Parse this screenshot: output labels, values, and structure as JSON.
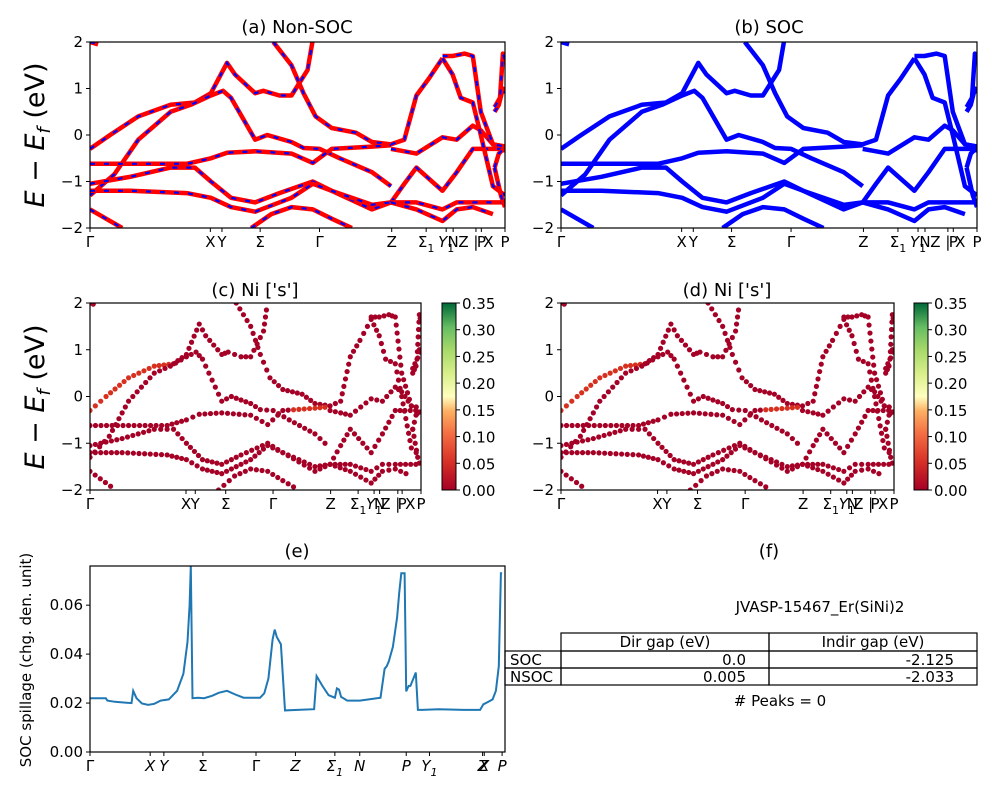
{
  "figure": {
    "material_title": "JVASP-15467_Er(SiNi)2",
    "peaks_text": "# Peaks = 0"
  },
  "chart_data": [
    {
      "id": "a",
      "type": "line",
      "title": "(a) Non-SOC",
      "ylabel": "E − E_f (eV)",
      "ylabel_main": "E − E",
      "ylabel_sub": "f",
      "ylabel_unit": " (eV)",
      "ylim": [
        -2,
        2
      ],
      "yticks": [
        -2,
        -1,
        0,
        1,
        2
      ],
      "ytick_labels": [
        "−2",
        "−1",
        "0",
        "1",
        "2"
      ],
      "xticks": [
        {
          "k": 0.0,
          "label": "Γ"
        },
        {
          "k": 0.29,
          "label": "X"
        },
        {
          "k": 0.318,
          "label": "Y"
        },
        {
          "k": 0.41,
          "label": "Σ"
        },
        {
          "k": 0.553,
          "label": "Γ"
        },
        {
          "k": 0.747,
          "label": "Z"
        },
        {
          "k": 0.81,
          "label": "Σ1"
        },
        {
          "k": 0.875,
          "label": "N"
        },
        {
          "k": 0.95,
          "label": "P"
        },
        {
          "k": 0.88,
          "label": "Y1"
        },
        {
          "k": 0.93,
          "label": "Z | X"
        },
        {
          "k": 1.0,
          "label": "P"
        }
      ],
      "series": [
        {
          "name": "NSOC",
          "color": "#ff0000"
        },
        {
          "name": "SOC",
          "color": "#0000ff",
          "style": "dashed-overlay"
        }
      ],
      "grid": false
    },
    {
      "id": "b",
      "type": "line",
      "title": "(b) SOC",
      "ylim": [
        -2,
        2
      ],
      "yticks": [
        -2,
        -1,
        0,
        1,
        2
      ],
      "ytick_labels": [
        "−2",
        "−1",
        "0",
        "1",
        "2"
      ],
      "series": [
        {
          "name": "SOC",
          "color": "#0000ff"
        }
      ],
      "grid": false
    },
    {
      "id": "c",
      "type": "scatter",
      "title": "(c)  Ni ['s']",
      "ylabel": "E − E_f (eV)",
      "ylim": [
        -2,
        2
      ],
      "colorbar": {
        "cmap": "RdYlGn",
        "range": [
          0.0,
          0.35
        ],
        "ticks": [
          "0.00",
          "0.05",
          "0.10",
          "0.15",
          "0.20",
          "0.25",
          "0.30",
          "0.35"
        ]
      },
      "grid": false
    },
    {
      "id": "d",
      "type": "scatter",
      "title": "(d) Ni ['s']",
      "ylim": [
        -2,
        2
      ],
      "colorbar": {
        "cmap": "RdYlGn",
        "range": [
          0.0,
          0.35
        ],
        "ticks": [
          "0.00",
          "0.05",
          "0.10",
          "0.15",
          "0.20",
          "0.25",
          "0.30",
          "0.35"
        ]
      },
      "grid": false
    },
    {
      "id": "e",
      "type": "line",
      "title": "(e)",
      "ylabel": "SOC spillage (chg. den. unit)",
      "ylim": [
        0.0,
        0.076
      ],
      "yticks": [
        0.0,
        0.02,
        0.04,
        0.06
      ],
      "ytick_labels": [
        "0.00",
        "0.02",
        "0.04",
        "0.06"
      ],
      "xtick_labels": [
        "Γ",
        "X",
        "Y",
        "Σ",
        "Γ",
        "Z",
        "Σ1",
        "N",
        "P",
        "Y1",
        "Z",
        "X",
        "P"
      ],
      "xtick_k": [
        0.0,
        0.145,
        0.178,
        0.272,
        0.4,
        0.495,
        0.59,
        0.65,
        0.762,
        0.818,
        0.946,
        0.95,
        0.993
      ],
      "color": "#1f77b4",
      "x": [
        0.0,
        0.038,
        0.042,
        0.06,
        0.1,
        0.104,
        0.112,
        0.125,
        0.14,
        0.155,
        0.17,
        0.19,
        0.21,
        0.225,
        0.235,
        0.24,
        0.243,
        0.247,
        0.26,
        0.275,
        0.295,
        0.31,
        0.33,
        0.35,
        0.37,
        0.39,
        0.41,
        0.42,
        0.43,
        0.435,
        0.44,
        0.445,
        0.45,
        0.46,
        0.47,
        0.5,
        0.54,
        0.546,
        0.56,
        0.575,
        0.59,
        0.595,
        0.6,
        0.605,
        0.62,
        0.65,
        0.7,
        0.71,
        0.715,
        0.72,
        0.73,
        0.74,
        0.745,
        0.75,
        0.755,
        0.758,
        0.762,
        0.765,
        0.768,
        0.772,
        0.778,
        0.785,
        0.79,
        0.8,
        0.84,
        0.9,
        0.94,
        0.948,
        0.96,
        0.97,
        0.978,
        0.985,
        0.99,
        0.993
      ],
      "y": [
        0.022,
        0.022,
        0.021,
        0.0205,
        0.02,
        0.025,
        0.022,
        0.0198,
        0.0193,
        0.0197,
        0.021,
        0.0215,
        0.025,
        0.032,
        0.045,
        0.06,
        0.076,
        0.022,
        0.0222,
        0.022,
        0.023,
        0.0242,
        0.025,
        0.0235,
        0.0222,
        0.0222,
        0.0222,
        0.024,
        0.03,
        0.038,
        0.046,
        0.05,
        0.047,
        0.044,
        0.017,
        0.0172,
        0.0175,
        0.031,
        0.027,
        0.0232,
        0.0222,
        0.026,
        0.0255,
        0.0225,
        0.021,
        0.021,
        0.0222,
        0.034,
        0.035,
        0.037,
        0.043,
        0.055,
        0.065,
        0.073,
        0.073,
        0.073,
        0.0248,
        0.026,
        0.027,
        0.027,
        0.0295,
        0.0325,
        0.0172,
        0.0172,
        0.0175,
        0.0172,
        0.0172,
        0.0195,
        0.0205,
        0.0215,
        0.025,
        0.035,
        0.073,
        0.073
      ],
      "grid": false
    }
  ],
  "table": {
    "col_labels": [
      "Dir gap (eV)",
      "Indir gap (eV)"
    ],
    "rows": [
      {
        "label": "SOC",
        "dir_gap": "0.0",
        "indir_gap": "-2.125"
      },
      {
        "label": "NSOC",
        "dir_gap": "0.005",
        "indir_gap": "-2.033"
      }
    ]
  },
  "panel_f_title": "(f)"
}
